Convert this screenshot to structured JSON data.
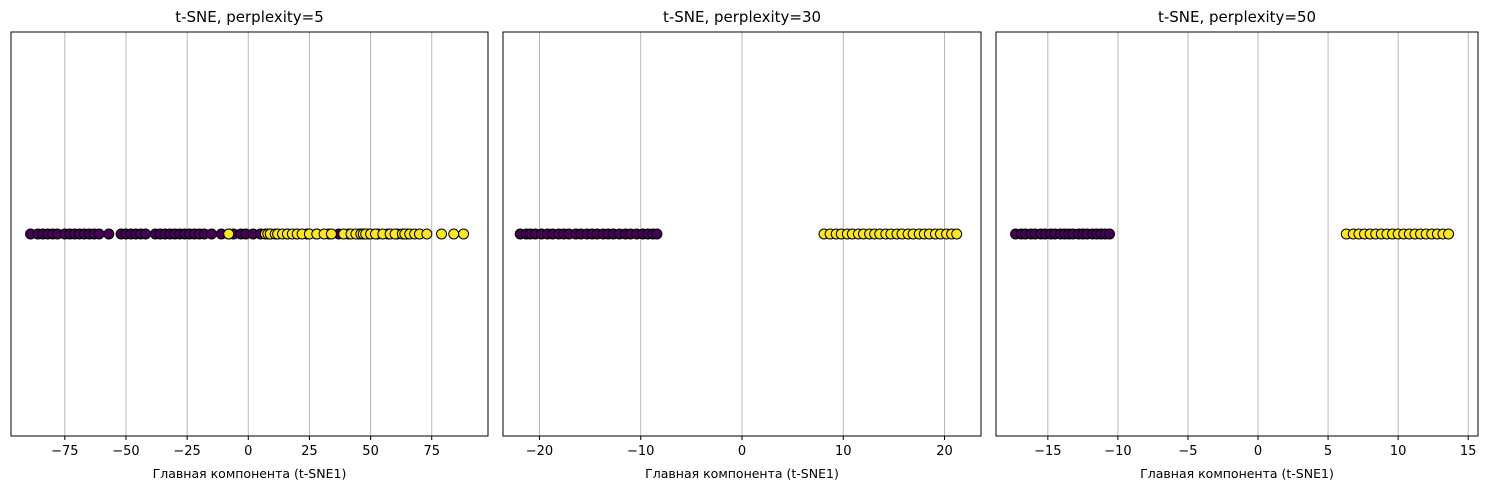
{
  "chart_data": [
    {
      "type": "scatter",
      "title": "t-SNE, perplexity=5",
      "xlabel": "Главная компонента (t-SNE1)",
      "xlim": [
        -97,
        98
      ],
      "xticks": [
        -75,
        -50,
        -25,
        0,
        25,
        50,
        75
      ],
      "xtick_labels": [
        "−75",
        "−50",
        "−25",
        "0",
        "25",
        "50",
        "75"
      ],
      "grid": "x",
      "y_value": 0,
      "series": [
        {
          "color": "#440154",
          "x": [
            -89,
            -86,
            -84,
            -82,
            -80,
            -78,
            -75,
            -73,
            -71,
            -69,
            -67,
            -65,
            -63,
            -61,
            -57,
            -52,
            -50,
            -48,
            -46,
            -44,
            -42,
            -38,
            -36,
            -34,
            -32,
            -30,
            -28,
            -26,
            -24,
            -22,
            -20,
            -18,
            -15,
            -11,
            -8,
            -6,
            -3,
            -1,
            2,
            5,
            9,
            12,
            16,
            20,
            24,
            28,
            33,
            37,
            41,
            45,
            49,
            53,
            57,
            61,
            65
          ]
        },
        {
          "color": "#fde725",
          "x": [
            -8,
            7,
            8,
            9,
            11,
            12,
            14,
            16,
            18,
            20,
            22,
            25,
            28,
            31,
            34,
            39,
            42,
            44,
            46,
            47,
            48,
            50,
            52,
            55,
            58,
            60,
            63,
            64,
            66,
            68,
            70,
            73,
            79,
            84,
            88
          ]
        }
      ]
    },
    {
      "type": "scatter",
      "title": "t-SNE, perplexity=30",
      "xlabel": "Главная компонента (t-SNE1)",
      "xlim": [
        -23.6,
        23.6
      ],
      "xticks": [
        -20,
        -10,
        0,
        10,
        20
      ],
      "xtick_labels": [
        "−20",
        "−10",
        "0",
        "10",
        "20"
      ],
      "grid": "x",
      "y_value": 0,
      "series": [
        {
          "color": "#440154",
          "x": [
            -21.9,
            -21.3,
            -20.9,
            -20.4,
            -19.8,
            -19.2,
            -18.7,
            -18.1,
            -17.6,
            -17.1,
            -16.4,
            -15.9,
            -15.3,
            -14.8,
            -14.3,
            -13.7,
            -13.2,
            -12.7,
            -12.1,
            -11.5,
            -11.0,
            -10.4,
            -9.8,
            -9.3,
            -8.8,
            -8.4
          ]
        },
        {
          "color": "#fde725",
          "x": [
            8.1,
            8.7,
            9.3,
            9.8,
            10.4,
            10.9,
            11.5,
            12.0,
            12.6,
            13.1,
            13.6,
            14.2,
            14.7,
            15.3,
            15.8,
            16.4,
            16.9,
            17.5,
            18.0,
            18.5,
            19.1,
            19.6,
            20.2,
            20.7,
            21.2
          ]
        }
      ]
    },
    {
      "type": "scatter",
      "title": "t-SNE, perplexity=50",
      "xlabel": "Главная компонента (t-SNE1)",
      "xlim": [
        -18.7,
        15.7
      ],
      "xticks": [
        -15,
        -10,
        -5,
        0,
        5,
        10,
        15
      ],
      "xtick_labels": [
        "−15",
        "−10",
        "−5",
        "0",
        "5",
        "10",
        "15"
      ],
      "grid": "x",
      "y_value": 0,
      "series": [
        {
          "color": "#440154",
          "x": [
            -17.3,
            -16.9,
            -16.6,
            -16.2,
            -15.9,
            -15.5,
            -15.2,
            -14.8,
            -14.5,
            -14.1,
            -13.8,
            -13.5,
            -13.2,
            -12.8,
            -12.5,
            -12.2,
            -11.8,
            -11.5,
            -11.2,
            -10.9,
            -10.6
          ]
        },
        {
          "color": "#fde725",
          "x": [
            6.3,
            6.8,
            7.2,
            7.6,
            8.0,
            8.4,
            8.8,
            9.2,
            9.6,
            10.0,
            10.4,
            10.8,
            11.2,
            11.6,
            12.0,
            12.4,
            12.8,
            13.2,
            13.6
          ]
        }
      ]
    }
  ]
}
